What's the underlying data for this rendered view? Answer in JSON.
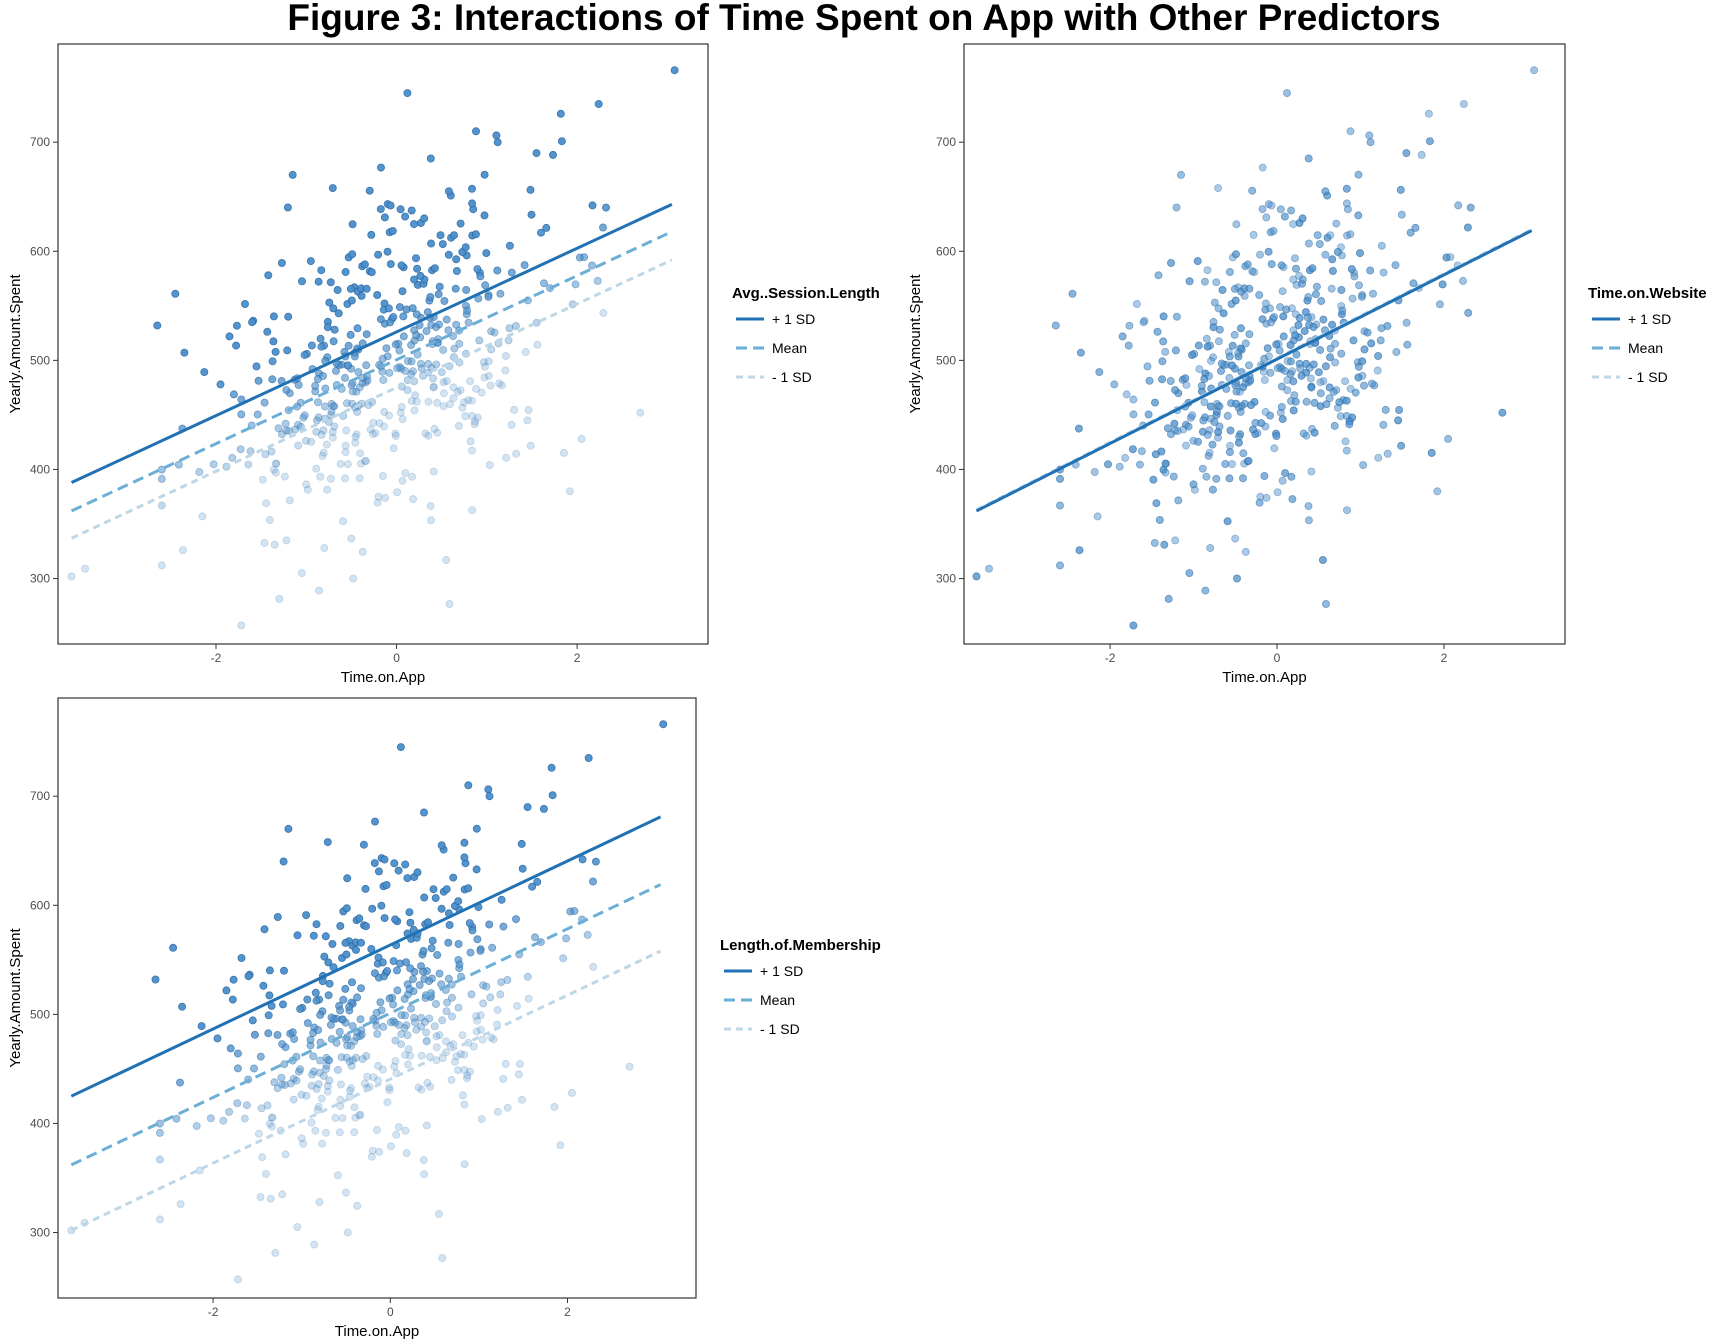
{
  "figure_title": "Figure 3: Interactions of Time Spent on App with Other Predictors",
  "colors": {
    "plus_1sd": "#2171b5",
    "mean": "#6baed6",
    "minus_1sd": "#bdd7e7",
    "point_fill": "#4a8ecb",
    "frame": "#333333"
  },
  "chart_data": [
    {
      "type": "scatter",
      "xlabel": "Time.on.App",
      "ylabel": "Yearly.Amount.Spent",
      "xlim": [
        -3.75,
        3.45
      ],
      "ylim": [
        240,
        790
      ],
      "x_ticks": [
        -2,
        0,
        2
      ],
      "x_tick_labels": [
        "-2",
        "0",
        "2"
      ],
      "y_ticks": [
        300,
        400,
        500,
        600,
        700
      ],
      "y_tick_labels": [
        "300",
        "400",
        "500",
        "600",
        "700"
      ],
      "grid": false,
      "legend_position": "right",
      "legend_title": "Avg..Session.Length",
      "series": [
        {
          "name": "+ 1 SD",
          "line_style": "solid",
          "x": [
            -3.6,
            3.05
          ],
          "y": [
            388,
            643
          ]
        },
        {
          "name": "Mean",
          "line_style": "dashed",
          "x": [
            -3.6,
            3.05
          ],
          "y": [
            362,
            618
          ]
        },
        {
          "name": "- 1 SD",
          "line_style": "dotted",
          "x": [
            -3.6,
            3.05
          ],
          "y": [
            337,
            592
          ]
        }
      ]
    },
    {
      "type": "scatter",
      "xlabel": "Time.on.App",
      "ylabel": "Yearly.Amount.Spent",
      "xlim": [
        -3.75,
        3.45
      ],
      "ylim": [
        240,
        790
      ],
      "x_ticks": [
        -2,
        0,
        2
      ],
      "x_tick_labels": [
        "-2",
        "0",
        "2"
      ],
      "y_ticks": [
        300,
        400,
        500,
        600,
        700
      ],
      "y_tick_labels": [
        "300",
        "400",
        "500",
        "600",
        "700"
      ],
      "grid": false,
      "legend_position": "right",
      "legend_title": "Time.on.Website",
      "series": [
        {
          "name": "+ 1 SD",
          "line_style": "solid",
          "x": [
            -3.6,
            3.05
          ],
          "y": [
            362,
            619
          ]
        },
        {
          "name": "Mean",
          "line_style": "dashed",
          "x": [
            -3.6,
            3.05
          ],
          "y": [
            362,
            619
          ]
        },
        {
          "name": "- 1 SD",
          "line_style": "dotted",
          "x": [
            -3.6,
            3.05
          ],
          "y": [
            363,
            620
          ]
        }
      ]
    },
    {
      "type": "scatter",
      "xlabel": "Time.on.App",
      "ylabel": "Yearly.Amount.Spent",
      "xlim": [
        -3.75,
        3.45
      ],
      "ylim": [
        240,
        790
      ],
      "x_ticks": [
        -2,
        0,
        2
      ],
      "x_tick_labels": [
        "-2",
        "0",
        "2"
      ],
      "y_ticks": [
        300,
        400,
        500,
        600,
        700
      ],
      "y_tick_labels": [
        "300",
        "400",
        "500",
        "600",
        "700"
      ],
      "grid": false,
      "legend_position": "right",
      "legend_title": "Length.of.Membership",
      "series": [
        {
          "name": "+ 1 SD",
          "line_style": "solid",
          "x": [
            -3.6,
            3.05
          ],
          "y": [
            425,
            681
          ]
        },
        {
          "name": "Mean",
          "line_style": "dashed",
          "x": [
            -3.6,
            3.05
          ],
          "y": [
            362,
            619
          ]
        },
        {
          "name": "- 1 SD",
          "line_style": "dotted",
          "x": [
            -3.6,
            3.05
          ],
          "y": [
            302,
            558
          ]
        }
      ]
    }
  ],
  "scatter_points": {
    "x": [
      -3.6,
      -3.45,
      -2.65,
      -2.35,
      -2.15,
      -1.95,
      -1.85,
      -1.72,
      -1.6,
      -1.42,
      -1.35,
      -1.22,
      -1.15,
      -1.05,
      -0.95,
      -0.8,
      -0.62,
      -0.48,
      -0.28,
      0.12,
      0.38,
      0.55,
      0.88,
      1.12,
      1.55,
      1.82,
      2.05,
      2.32,
      2.7,
      3.08,
      -1.2,
      -0.72,
      -0.2,
      0.32,
      0.58,
      1.45,
      1.92,
      -0.35,
      0.08,
      0.52,
      1.15,
      1.6
    ],
    "y": [
      302,
      309,
      532,
      507,
      357,
      478,
      522,
      257,
      535,
      578,
      331,
      335,
      670,
      305,
      591,
      328,
      405,
      300,
      615,
      745,
      685,
      317,
      710,
      700,
      690,
      726,
      428,
      640,
      452,
      766,
      540,
      453,
      375,
      433,
      655,
      445,
      380,
      588,
      522,
      480,
      561,
      617
    ],
    "count": 500
  }
}
